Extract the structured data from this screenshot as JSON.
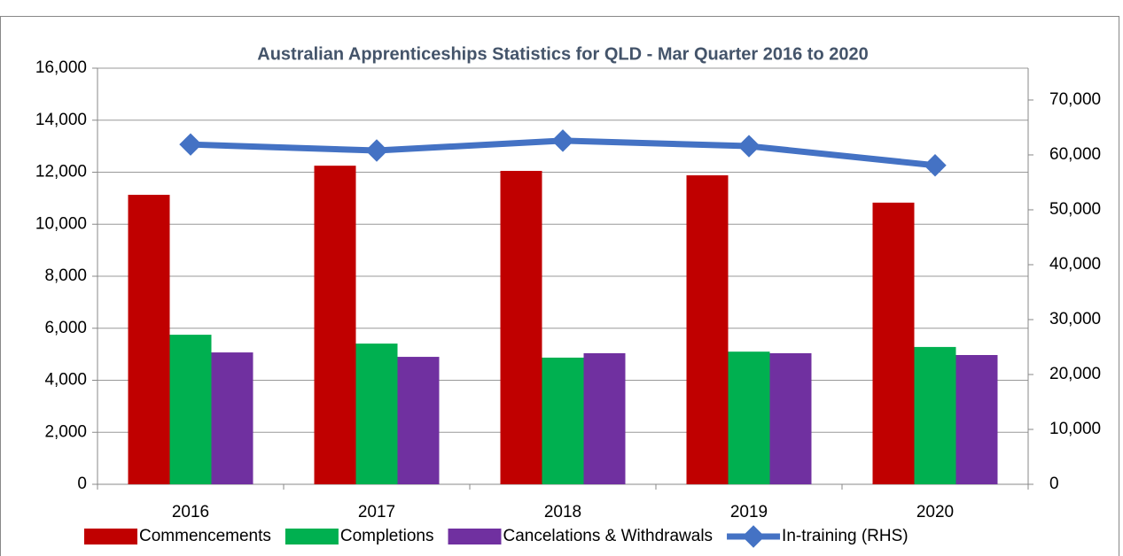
{
  "chart_data": {
    "type": "bar",
    "title": "Australian Apprenticeships Statistics for QLD - Mar Quarter  2016 to 2020",
    "categories": [
      "2016",
      "2017",
      "2018",
      "2019",
      "2020"
    ],
    "series": [
      {
        "name": "Commencements",
        "color": "#c00000",
        "values": [
          11130,
          12250,
          12050,
          11880,
          10830
        ]
      },
      {
        "name": "Completions",
        "color": "#00b050",
        "values": [
          5750,
          5410,
          4870,
          5100,
          5280
        ]
      },
      {
        "name": "Cancelations & Withdrawals",
        "color": "#7030a0",
        "values": [
          5070,
          4900,
          5040,
          5040,
          4970
        ]
      },
      {
        "name": "In-training (RHS)",
        "color": "#4472c4",
        "type": "line",
        "axis": "y2",
        "values": [
          61900,
          60800,
          62600,
          61600,
          58100
        ]
      }
    ],
    "ylim": [
      0,
      16000
    ],
    "yticks": [
      0,
      {
        "value": 2000,
        "label": "2,000"
      },
      {
        "value": 4000,
        "label": "4,000"
      },
      {
        "value": 6000,
        "label": "6,000"
      },
      {
        "value": 8000,
        "label": "8,000"
      },
      {
        "value": 10000,
        "label": "10,000"
      },
      {
        "value": 12000,
        "label": "12,000"
      },
      {
        "value": 14000,
        "label": "14,000"
      },
      {
        "value": 16000,
        "label": "16,000"
      }
    ],
    "y2lim": [
      0,
      75800
    ],
    "y2ticks": [
      0,
      {
        "value": 10000,
        "label": "10,000"
      },
      {
        "value": 20000,
        "label": "20,000"
      },
      {
        "value": 30000,
        "label": "30,000"
      },
      {
        "value": 40000,
        "label": "40,000"
      },
      {
        "value": 50000,
        "label": "50,000"
      },
      {
        "value": 60000,
        "label": "60,000"
      },
      {
        "value": 70000,
        "label": "70,000"
      }
    ],
    "grid": true,
    "legend": "bottom"
  }
}
